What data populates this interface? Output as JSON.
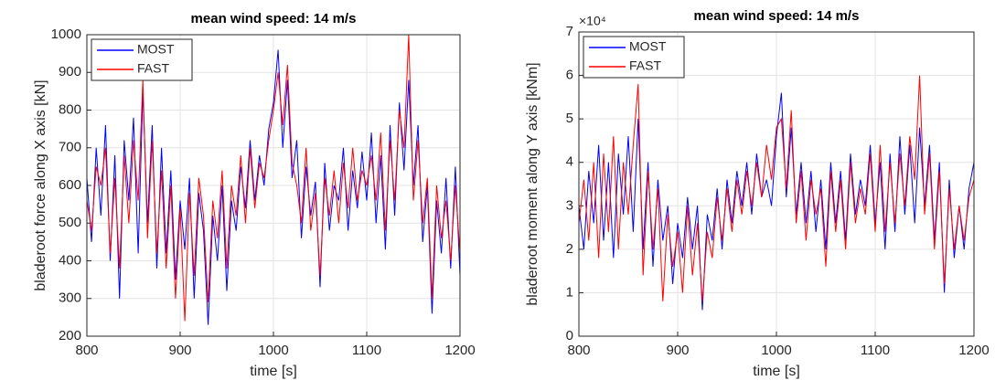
{
  "chart_data": [
    {
      "type": "line",
      "title": "mean wind speed: 14 m/s",
      "x_label": "time [s]",
      "y_label": "bladeroot force along X axis [kN]",
      "xlim": [
        800,
        1200
      ],
      "xticks": [
        800,
        900,
        1000,
        1100,
        1200
      ],
      "ylim": [
        200,
        1000
      ],
      "yticks": [
        200,
        300,
        400,
        500,
        600,
        700,
        800,
        900,
        1000
      ],
      "grid": true,
      "legend": "upper-left",
      "x": [
        800,
        805,
        810,
        815,
        820,
        825,
        830,
        835,
        840,
        845,
        850,
        855,
        860,
        865,
        870,
        875,
        880,
        885,
        890,
        895,
        900,
        905,
        910,
        915,
        920,
        925,
        930,
        935,
        940,
        945,
        950,
        955,
        960,
        965,
        970,
        975,
        980,
        985,
        990,
        995,
        1000,
        1005,
        1010,
        1015,
        1020,
        1025,
        1030,
        1035,
        1040,
        1045,
        1050,
        1055,
        1060,
        1065,
        1070,
        1075,
        1080,
        1085,
        1090,
        1095,
        1100,
        1105,
        1110,
        1115,
        1120,
        1125,
        1130,
        1135,
        1140,
        1145,
        1150,
        1155,
        1160,
        1165,
        1170,
        1175,
        1180,
        1185,
        1190,
        1195,
        1200
      ],
      "series": [
        {
          "name": "MOST",
          "color": "#0000ff",
          "values": [
            620,
            450,
            700,
            520,
            760,
            400,
            680,
            300,
            720,
            560,
            780,
            420,
            850,
            500,
            760,
            380,
            700,
            420,
            640,
            350,
            560,
            430,
            620,
            300,
            580,
            480,
            230,
            520,
            400,
            600,
            320,
            560,
            480,
            650,
            540,
            720,
            560,
            680,
            600,
            750,
            820,
            960,
            700,
            880,
            620,
            720,
            460,
            650,
            520,
            610,
            330,
            660,
            480,
            600,
            560,
            700,
            480,
            640,
            540,
            690,
            560,
            740,
            500,
            680,
            430,
            760,
            520,
            820,
            640,
            880,
            600,
            760,
            450,
            600,
            260,
            560,
            420,
            620,
            380,
            650,
            360
          ]
        },
        {
          "name": "FAST",
          "color": "#ff0000",
          "values": [
            560,
            480,
            650,
            600,
            700,
            420,
            620,
            380,
            680,
            500,
            720,
            560,
            880,
            460,
            720,
            420,
            640,
            380,
            600,
            300,
            540,
            240,
            580,
            360,
            620,
            520,
            290,
            560,
            460,
            640,
            380,
            600,
            520,
            680,
            500,
            700,
            540,
            660,
            620,
            720,
            800,
            900,
            760,
            920,
            660,
            600,
            500,
            700,
            480,
            580,
            360,
            620,
            520,
            640,
            500,
            660,
            540,
            700,
            560,
            640,
            600,
            680,
            560,
            740,
            480,
            720,
            560,
            800,
            700,
            1000,
            560,
            720,
            500,
            620,
            300,
            600,
            460,
            560,
            400,
            600,
            420
          ]
        }
      ]
    },
    {
      "type": "line",
      "title": "mean wind speed: 14 m/s",
      "x_label": "time [s]",
      "y_label": "bladeroot moment along Y axis [kNm]",
      "y_multiplier": "×10⁴",
      "xlim": [
        800,
        1200
      ],
      "xticks": [
        800,
        900,
        1000,
        1100,
        1200
      ],
      "ylim": [
        0,
        70000
      ],
      "yticks": [
        0,
        {
          "value": 10000,
          "label": "1"
        },
        {
          "value": 20000,
          "label": "2"
        },
        {
          "value": 30000,
          "label": "3"
        },
        {
          "value": 40000,
          "label": "4"
        },
        {
          "value": 50000,
          "label": "5"
        },
        {
          "value": 60000,
          "label": "6"
        },
        {
          "value": 70000,
          "label": "7"
        }
      ],
      "grid": true,
      "legend": "upper-left",
      "x": [
        800,
        805,
        810,
        815,
        820,
        825,
        830,
        835,
        840,
        845,
        850,
        855,
        860,
        865,
        870,
        875,
        880,
        885,
        890,
        895,
        900,
        905,
        910,
        915,
        920,
        925,
        930,
        935,
        940,
        945,
        950,
        955,
        960,
        965,
        970,
        975,
        980,
        985,
        990,
        995,
        1000,
        1005,
        1010,
        1015,
        1020,
        1025,
        1030,
        1035,
        1040,
        1045,
        1050,
        1055,
        1060,
        1065,
        1070,
        1075,
        1080,
        1085,
        1090,
        1095,
        1100,
        1105,
        1110,
        1115,
        1120,
        1125,
        1130,
        1135,
        1140,
        1145,
        1150,
        1155,
        1160,
        1165,
        1170,
        1175,
        1180,
        1185,
        1190,
        1195,
        1200
      ],
      "series": [
        {
          "name": "MOST",
          "color": "#0000ff",
          "values": [
            30000,
            20000,
            38000,
            26000,
            44000,
            22000,
            40000,
            18000,
            42000,
            28000,
            46000,
            24000,
            50000,
            20000,
            40000,
            16000,
            36000,
            22000,
            30000,
            12000,
            26000,
            18000,
            32000,
            20000,
            30000,
            6000,
            28000,
            22000,
            34000,
            20000,
            36000,
            26000,
            38000,
            30000,
            40000,
            28000,
            42000,
            32000,
            36000,
            30000,
            46000,
            56000,
            32000,
            48000,
            28000,
            40000,
            26000,
            38000,
            24000,
            36000,
            20000,
            40000,
            26000,
            38000,
            22000,
            42000,
            28000,
            36000,
            30000,
            44000,
            26000,
            40000,
            20000,
            42000,
            24000,
            46000,
            28000,
            44000,
            26000,
            48000,
            30000,
            44000,
            22000,
            40000,
            10000,
            36000,
            18000,
            30000,
            20000,
            34000,
            40000
          ]
        },
        {
          "name": "FAST",
          "color": "#ff0000",
          "values": [
            26000,
            36000,
            22000,
            40000,
            18000,
            42000,
            24000,
            46000,
            20000,
            40000,
            28000,
            44000,
            58000,
            14000,
            38000,
            20000,
            34000,
            8000,
            28000,
            16000,
            24000,
            10000,
            30000,
            14000,
            26000,
            8000,
            24000,
            18000,
            32000,
            22000,
            34000,
            24000,
            36000,
            28000,
            38000,
            30000,
            40000,
            32000,
            44000,
            36000,
            48000,
            50000,
            34000,
            52000,
            26000,
            38000,
            22000,
            36000,
            28000,
            34000,
            16000,
            38000,
            24000,
            36000,
            20000,
            40000,
            26000,
            34000,
            28000,
            42000,
            24000,
            44000,
            24000,
            40000,
            26000,
            42000,
            30000,
            46000,
            36000,
            60000,
            28000,
            42000,
            20000,
            38000,
            12000,
            34000,
            20000,
            30000,
            22000,
            32000,
            36000
          ]
        }
      ]
    }
  ]
}
